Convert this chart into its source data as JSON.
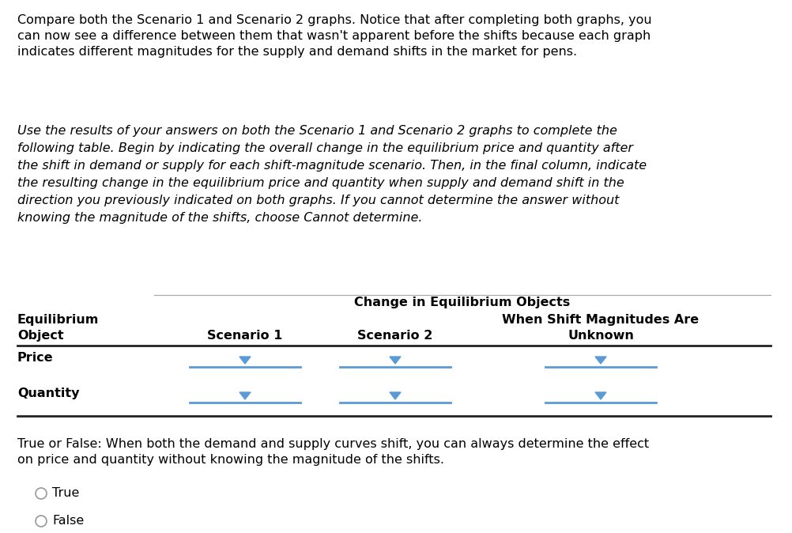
{
  "bg_color": "#ffffff",
  "top_paragraph_lines": [
    "Compare both the Scenario 1 and Scenario 2 graphs. Notice that after completing both graphs, you",
    "can now see a difference between them that wasn't apparent before the shifts because each graph",
    "indicates different magnitudes for the supply and demand shifts in the market for pens."
  ],
  "middle_paragraph_lines": [
    "Use the results of your answers on both the Scenario 1 and Scenario 2 graphs to complete the",
    "following table. Begin by indicating the overall change in the equilibrium price and quantity after",
    "the shift in demand or supply for each shift-magnitude scenario. Then, in the final column, indicate",
    "the resulting change in the equilibrium price and quantity when supply and demand shift in the",
    "direction you previously indicated on both graphs. If you cannot determine the answer without",
    "knowing the magnitude of the shifts, choose Cannot determine."
  ],
  "table_header": "Change in Equilibrium Objects",
  "col1_header_line1": "Equilibrium",
  "col1_header_line2": "Object",
  "col2_header": "Scenario 1",
  "col3_header": "Scenario 2",
  "col4_header_line1": "When Shift Magnitudes Are",
  "col4_header_line2": "Unknown",
  "row1_label": "Price",
  "row2_label": "Quantity",
  "true_false_line1": "True or False: When both the demand and supply curves shift, you can always determine the effect",
  "true_false_line2": "on price and quantity without knowing the magnitude of the shifts.",
  "option_true": "True",
  "option_false": "False",
  "arrow_color": "#5b9bd5",
  "line_color": "#5b9bd5",
  "text_color": "#000000",
  "gray_line_color": "#aaaaaa",
  "thick_line_color": "#222222"
}
